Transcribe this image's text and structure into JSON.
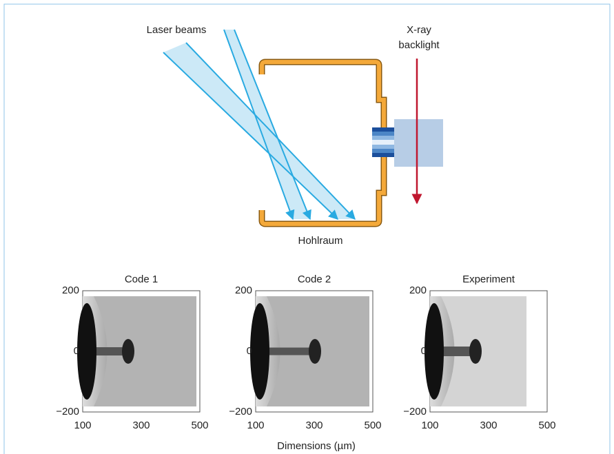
{
  "diagram": {
    "labels": {
      "laser": "Laser beams",
      "xray": [
        "X-ray",
        "backlight"
      ],
      "hohlraum": "Hohlraum"
    }
  },
  "panels": [
    {
      "title": "Code 1"
    },
    {
      "title": "Code 2"
    },
    {
      "title": "Experiment"
    }
  ],
  "axes": {
    "yticks": [
      "200",
      "0",
      "−200"
    ],
    "xticks": [
      "100",
      "300",
      "500"
    ],
    "xlabel": "Dimensions (µm)"
  }
}
